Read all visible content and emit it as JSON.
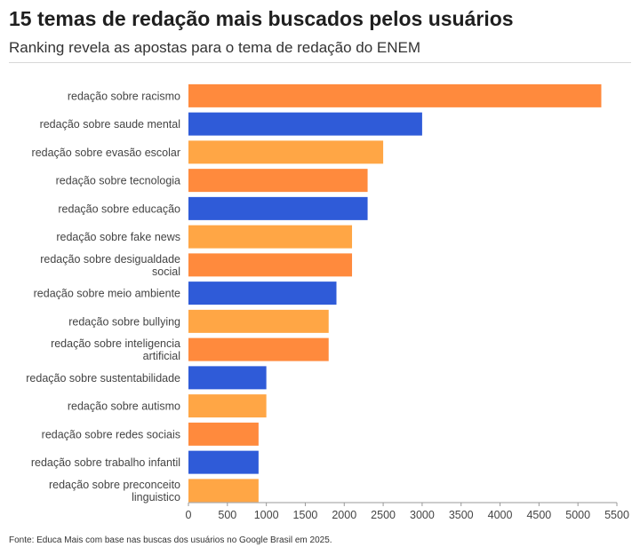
{
  "header": {
    "title": "15 temas de redação mais buscados pelos usuários",
    "subtitle": "Ranking revela as apostas para o tema de redação do ENEM"
  },
  "source": "Fonte: Educa Mais com base nas buscas dos usuários no Google Brasil em 2025.",
  "colors": {
    "orange": "#ff8a3d",
    "blue": "#2f5bd8",
    "light_orange": "#ffa645"
  },
  "chart_data": {
    "type": "bar",
    "orientation": "horizontal",
    "categories": [
      [
        "redação sobre racismo"
      ],
      [
        "redação sobre saude mental"
      ],
      [
        "redação sobre evasão escolar"
      ],
      [
        "redação sobre tecnologia"
      ],
      [
        "redação sobre educação"
      ],
      [
        "redação sobre fake news"
      ],
      [
        "redação sobre desigualdade",
        "social"
      ],
      [
        "redação sobre meio ambiente"
      ],
      [
        "redação sobre bullying"
      ],
      [
        "redação sobre inteligencia",
        "artificial"
      ],
      [
        "redação sobre sustentabilidade"
      ],
      [
        "redação sobre autismo"
      ],
      [
        "redação sobre redes sociais"
      ],
      [
        "redação sobre trabalho infantil"
      ],
      [
        "redação sobre preconceito",
        "linguistico"
      ]
    ],
    "values": [
      5300,
      3000,
      2500,
      2300,
      2300,
      2100,
      2100,
      1900,
      1800,
      1800,
      1000,
      1000,
      900,
      900,
      900
    ],
    "bar_colors": [
      "#ff8a3d",
      "#2f5bd8",
      "#ffa645",
      "#ff8a3d",
      "#2f5bd8",
      "#ffa645",
      "#ff8a3d",
      "#2f5bd8",
      "#ffa645",
      "#ff8a3d",
      "#2f5bd8",
      "#ffa645",
      "#ff8a3d",
      "#2f5bd8",
      "#ffa645"
    ],
    "xlim": [
      0,
      5500
    ],
    "xticks": [
      0,
      500,
      1000,
      1500,
      2000,
      2500,
      3000,
      3500,
      4000,
      4500,
      5000,
      5500
    ],
    "grid": false,
    "legend": "none",
    "xlabel": "",
    "ylabel": ""
  }
}
